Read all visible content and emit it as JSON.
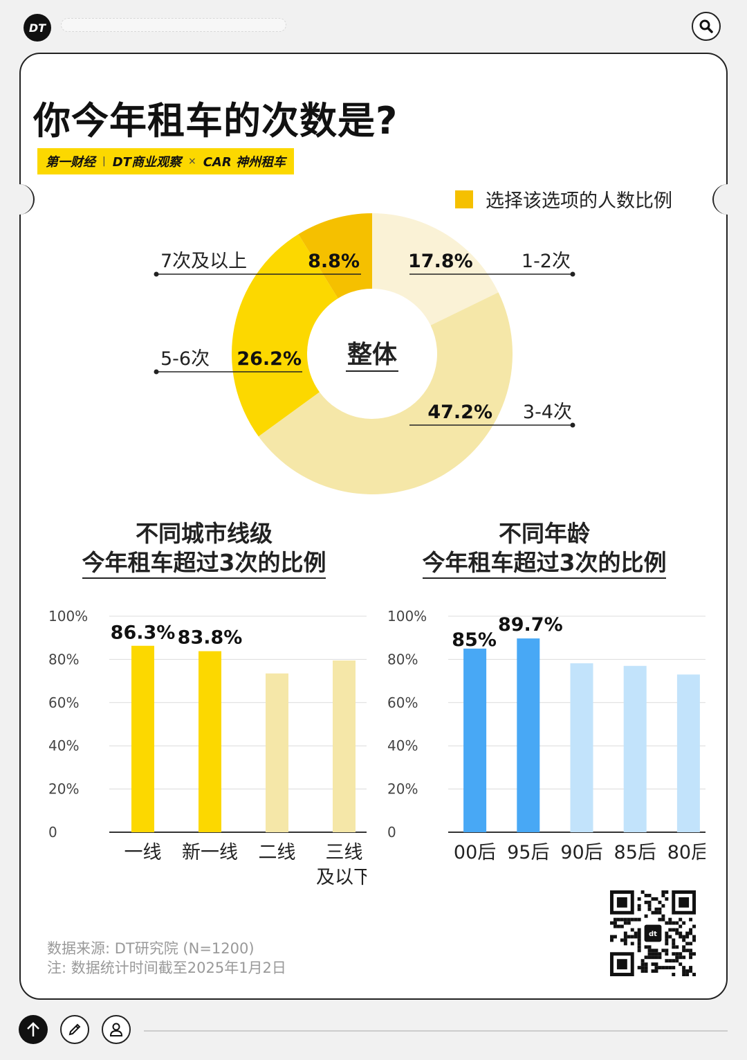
{
  "header": {
    "logo_text": "DT",
    "icons": {
      "logo": "dt-logo-icon",
      "search": "search-icon"
    }
  },
  "card": {
    "title": "你今年租车的次数是?",
    "brands": [
      "第一财经",
      "DT商业观察",
      "×",
      "CAR 神州租车"
    ],
    "legend_label": "选择该选项的人数比例",
    "source_line1": "数据来源: DT研究院 (N=1200)",
    "source_line2": "注: 数据统计时间截至2025年1月2日",
    "qr_label": "dt"
  },
  "colors": {
    "dark_yellow": "#f5c000",
    "yellow": "#fcd800",
    "light_yellow": "#f5e7a8",
    "pale_yellow": "#faf2d6",
    "blue": "#48a8f5",
    "light_blue": "#c2e3fb"
  },
  "chart_data": [
    {
      "type": "pie",
      "center_label": "整体",
      "slices": [
        {
          "label": "1-2次",
          "value": 17.8,
          "display": "17.8%",
          "color": "#faf2d6"
        },
        {
          "label": "3-4次",
          "value": 47.2,
          "display": "47.2%",
          "color": "#f5e7a8"
        },
        {
          "label": "5-6次",
          "value": 26.2,
          "display": "26.2%",
          "color": "#fcd800"
        },
        {
          "label": "7次及以上",
          "value": 8.8,
          "display": "8.8%",
          "color": "#f5c000"
        }
      ]
    },
    {
      "type": "bar",
      "title_line1": "不同城市线级",
      "title_line2": "今年租车超过3次的比例",
      "categories": [
        "一线",
        "新一线",
        "二线",
        "三线\n及以下"
      ],
      "values": [
        86.3,
        83.8,
        73.5,
        79.5
      ],
      "labels": [
        "86.3%",
        "83.8%",
        "",
        ""
      ],
      "colors": [
        "#fcd800",
        "#fcd800",
        "#f5e7a8",
        "#f5e7a8"
      ],
      "ylim": [
        0,
        100
      ],
      "yticks": [
        "0",
        "20%",
        "40%",
        "60%",
        "80%",
        "100%"
      ]
    },
    {
      "type": "bar",
      "title_line1": "不同年龄",
      "title_line2": "今年租车超过3次的比例",
      "categories": [
        "00后",
        "95后",
        "90后",
        "85后",
        "80后"
      ],
      "values": [
        85,
        89.7,
        78.2,
        77,
        73
      ],
      "labels": [
        "85%",
        "89.7%",
        "",
        "",
        ""
      ],
      "colors": [
        "#48a8f5",
        "#48a8f5",
        "#c2e3fb",
        "#c2e3fb",
        "#c2e3fb"
      ],
      "ylim": [
        0,
        100
      ],
      "yticks": [
        "0",
        "20%",
        "40%",
        "60%",
        "80%",
        "100%"
      ]
    }
  ],
  "bottom": {
    "icons": [
      "arrow-up-icon",
      "pencil-icon",
      "user-icon"
    ]
  }
}
